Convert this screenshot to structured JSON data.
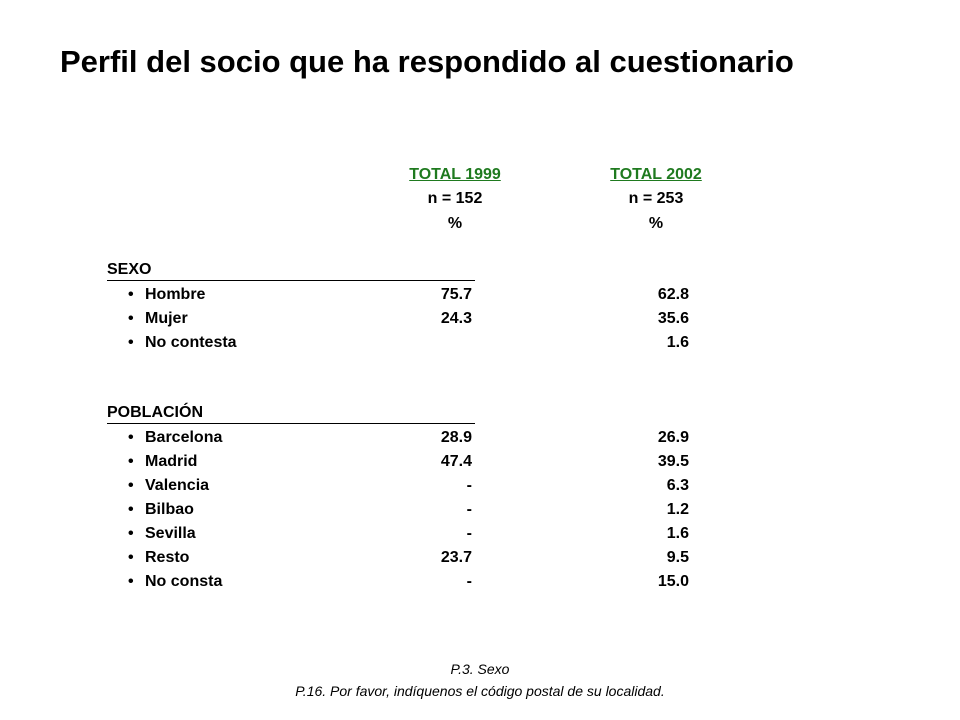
{
  "title": "Perfil del socio que ha respondido al cuestionario",
  "columns": [
    {
      "name": "TOTAL 1999",
      "n": "n = 152",
      "unit": "%"
    },
    {
      "name": "TOTAL 2002",
      "n": "n = 253",
      "unit": "%"
    }
  ],
  "sections": [
    {
      "heading": "SEXO",
      "rows": [
        {
          "label": "Hombre",
          "values": [
            "75.7",
            "62.8"
          ]
        },
        {
          "label": "Mujer",
          "values": [
            "24.3",
            "35.6"
          ]
        },
        {
          "label": "No contesta",
          "values": [
            null,
            "1.6"
          ]
        }
      ]
    },
    {
      "heading": "POBLACIÓN",
      "rows": [
        {
          "label": "Barcelona",
          "values": [
            "28.9",
            "26.9"
          ]
        },
        {
          "label": "Madrid",
          "values": [
            "47.4",
            "39.5"
          ]
        },
        {
          "label": "Valencia",
          "values": [
            "-",
            "6.3"
          ]
        },
        {
          "label": "Bilbao",
          "values": [
            "-",
            "1.2"
          ]
        },
        {
          "label": "Sevilla",
          "values": [
            "-",
            "1.6"
          ]
        },
        {
          "label": "Resto",
          "values": [
            "23.7",
            "9.5"
          ]
        },
        {
          "label": "No consta",
          "values": [
            "-",
            "15.0"
          ]
        }
      ]
    }
  ],
  "footnotes": [
    "P.3. Sexo",
    "P.16. Por favor, indíquenos el código postal de su localidad."
  ]
}
